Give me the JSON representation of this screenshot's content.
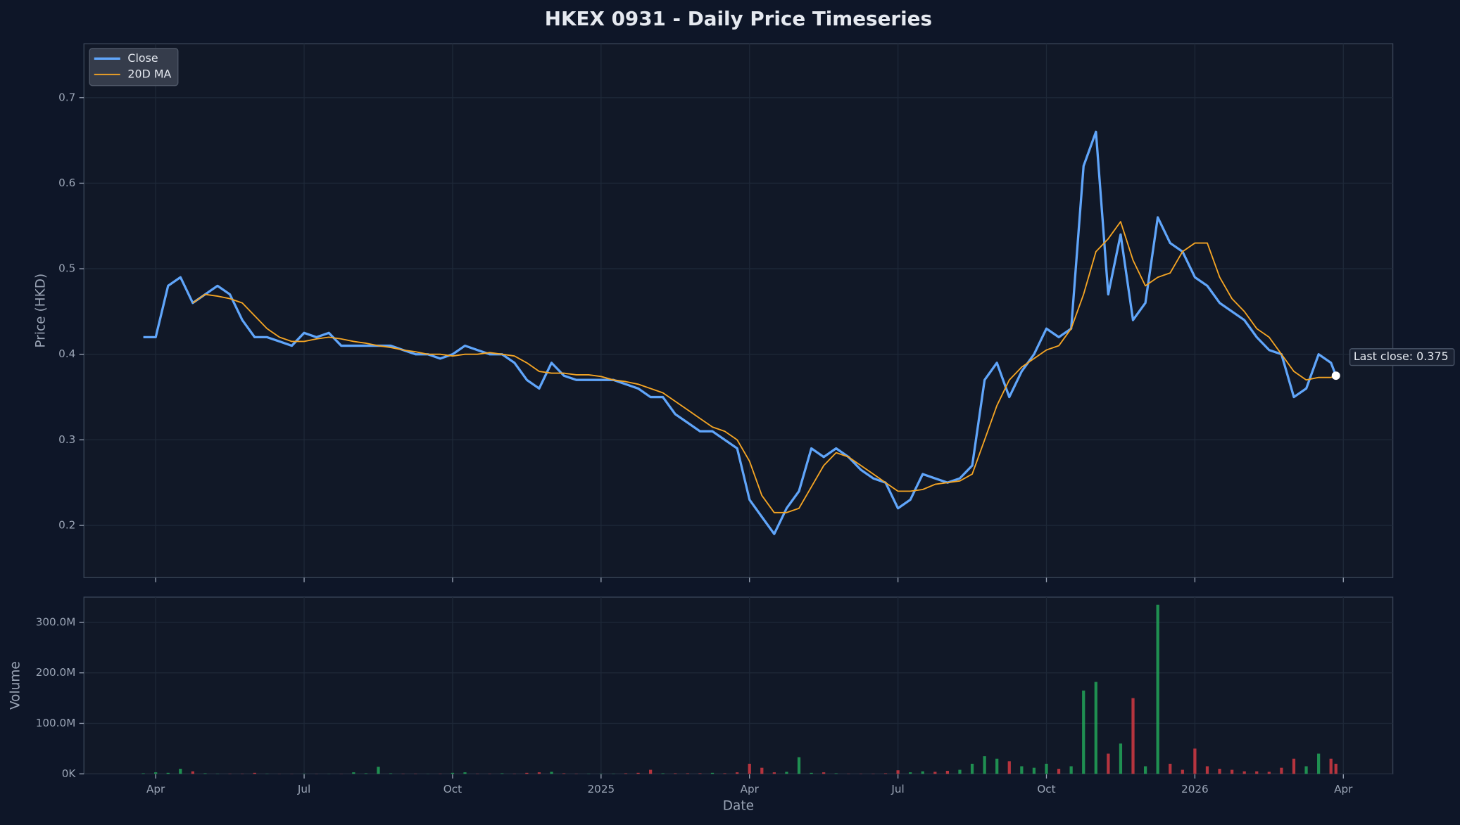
{
  "chart_data": [
    {
      "type": "line",
      "title": "HKEX 0931 - Daily Price Timeseries",
      "ylabel": "Price (HKD)",
      "x": [
        2.75,
        3,
        3.25,
        3.5,
        3.75,
        4,
        4.25,
        4.5,
        4.75,
        5,
        5.25,
        5.5,
        5.75,
        6,
        6.25,
        6.5,
        6.75,
        7,
        7.25,
        7.5,
        7.75,
        8,
        8.25,
        8.5,
        8.75,
        9,
        9.25,
        9.5,
        9.75,
        10,
        10.25,
        10.5,
        10.75,
        11,
        11.25,
        11.5,
        11.75,
        12,
        12.25,
        12.5,
        12.75,
        13,
        13.25,
        13.5,
        13.75,
        14,
        14.25,
        14.5,
        14.75,
        15,
        15.25,
        15.5,
        15.75,
        16,
        16.25,
        16.5,
        16.75,
        17,
        17.25,
        17.5,
        17.75,
        18,
        18.25,
        18.5,
        18.75,
        19,
        19.25,
        19.5,
        19.75,
        20,
        20.25,
        20.5,
        20.75,
        21,
        21.25,
        21.5,
        21.75,
        22,
        22.25,
        22.5,
        22.75,
        23,
        23.25,
        23.5,
        23.75,
        24,
        24.25,
        24.5,
        24.75,
        25,
        25.25,
        25.5,
        25.75,
        26,
        26.25,
        26.5,
        26.75,
        26.85
      ],
      "series": [
        {
          "name": "Close",
          "color": "#60a5fa",
          "values": [
            0.42,
            0.42,
            0.48,
            0.49,
            0.46,
            0.47,
            0.48,
            0.47,
            0.44,
            0.42,
            0.42,
            0.415,
            0.41,
            0.425,
            0.42,
            0.425,
            0.41,
            0.41,
            0.41,
            0.41,
            0.41,
            0.405,
            0.4,
            0.4,
            0.395,
            0.4,
            0.41,
            0.405,
            0.4,
            0.4,
            0.39,
            0.37,
            0.36,
            0.39,
            0.375,
            0.37,
            0.37,
            0.37,
            0.37,
            0.365,
            0.36,
            0.35,
            0.35,
            0.33,
            0.32,
            0.31,
            0.31,
            0.3,
            0.29,
            0.23,
            0.21,
            0.19,
            0.22,
            0.24,
            0.29,
            0.28,
            0.29,
            0.28,
            0.265,
            0.255,
            0.25,
            0.22,
            0.23,
            0.26,
            0.255,
            0.25,
            0.255,
            0.27,
            0.37,
            0.39,
            0.35,
            0.38,
            0.4,
            0.43,
            0.42,
            0.43,
            0.62,
            0.66,
            0.47,
            0.54,
            0.44,
            0.46,
            0.56,
            0.53,
            0.52,
            0.49,
            0.48,
            0.46,
            0.45,
            0.44,
            0.42,
            0.405,
            0.4,
            0.35,
            0.36,
            0.4,
            0.39,
            0.375
          ]
        },
        {
          "name": "20D MA",
          "color": "#f5a524",
          "values": [
            null,
            null,
            null,
            null,
            0.46,
            0.47,
            0.468,
            0.465,
            0.46,
            0.445,
            0.43,
            0.42,
            0.415,
            0.415,
            0.418,
            0.42,
            0.418,
            0.415,
            0.413,
            0.41,
            0.408,
            0.405,
            0.403,
            0.4,
            0.4,
            0.398,
            0.4,
            0.4,
            0.402,
            0.4,
            0.398,
            0.39,
            0.38,
            0.378,
            0.378,
            0.376,
            0.376,
            0.374,
            0.37,
            0.368,
            0.365,
            0.36,
            0.355,
            0.345,
            0.335,
            0.325,
            0.315,
            0.31,
            0.3,
            0.275,
            0.235,
            0.215,
            0.215,
            0.22,
            0.245,
            0.27,
            0.285,
            0.28,
            0.27,
            0.26,
            0.25,
            0.24,
            0.24,
            0.242,
            0.248,
            0.25,
            0.252,
            0.26,
            0.3,
            0.34,
            0.37,
            0.385,
            0.395,
            0.405,
            0.41,
            0.43,
            0.47,
            0.52,
            0.535,
            0.555,
            0.51,
            0.48,
            0.49,
            0.495,
            0.52,
            0.53,
            0.53,
            0.49,
            0.465,
            0.45,
            0.43,
            0.42,
            0.4,
            0.38,
            0.37,
            0.373,
            0.373,
            0.375
          ]
        }
      ],
      "xlim": [
        1.55,
        28.0
      ],
      "ylim": [
        0.139,
        0.763
      ],
      "yticks": [
        0.2,
        0.3,
        0.4,
        0.5,
        0.6,
        0.7
      ],
      "grid": true,
      "legend": "upper left",
      "annotation": "Last close: 0.375"
    },
    {
      "type": "bar",
      "xlabel": "Date",
      "ylabel": "Volume",
      "x": [
        2.75,
        3,
        3.25,
        3.5,
        3.75,
        4,
        4.25,
        4.5,
        4.75,
        5,
        5.25,
        5.5,
        5.75,
        6,
        6.25,
        6.5,
        6.75,
        7,
        7.25,
        7.5,
        7.75,
        8,
        8.25,
        8.5,
        8.75,
        9,
        9.25,
        9.5,
        9.75,
        10,
        10.25,
        10.5,
        10.75,
        11,
        11.25,
        11.5,
        11.75,
        12,
        12.25,
        12.5,
        12.75,
        13,
        13.25,
        13.5,
        13.75,
        14,
        14.25,
        14.5,
        14.75,
        15,
        15.25,
        15.5,
        15.75,
        16,
        16.25,
        16.5,
        16.75,
        17,
        17.25,
        17.5,
        17.75,
        18,
        18.25,
        18.5,
        18.75,
        19,
        19.25,
        19.5,
        19.75,
        20,
        20.25,
        20.5,
        20.75,
        21,
        21.25,
        21.5,
        21.75,
        22,
        22.25,
        22.5,
        22.75,
        23,
        23.25,
        23.5,
        23.75,
        24,
        24.25,
        24.5,
        24.75,
        25,
        25.25,
        25.5,
        25.75,
        26,
        26.25,
        26.5,
        26.75,
        26.85
      ],
      "values": [
        1000000,
        3000000,
        2000000,
        10000000,
        5000000,
        1000000,
        500000,
        500000,
        500000,
        2000000,
        500000,
        300000,
        300000,
        500000,
        300000,
        300000,
        300000,
        3000000,
        1000000,
        14000000,
        1000000,
        500000,
        500000,
        300000,
        500000,
        2000000,
        3000000,
        500000,
        500000,
        1000000,
        500000,
        2000000,
        3000000,
        4000000,
        1000000,
        500000,
        500000,
        500000,
        500000,
        1000000,
        2000000,
        8000000,
        1000000,
        1000000,
        1000000,
        1000000,
        2000000,
        1000000,
        3000000,
        20000000,
        12000000,
        3000000,
        4000000,
        33000000,
        2000000,
        3000000,
        1000000,
        500000,
        500000,
        500000,
        1000000,
        7000000,
        3000000,
        5000000,
        4000000,
        6000000,
        8000000,
        20000000,
        35000000,
        30000000,
        25000000,
        15000000,
        12000000,
        20000000,
        10000000,
        15000000,
        165000000,
        182000000,
        40000000,
        60000000,
        150000000,
        15000000,
        335000000,
        20000000,
        8000000,
        50000000,
        15000000,
        10000000,
        8000000,
        5000000,
        5000000,
        4000000,
        12000000,
        30000000,
        15000000,
        40000000,
        30000000,
        20000000
      ],
      "up_color": "#22a559",
      "down_color": "#d33a43",
      "xlim": [
        1.55,
        28.0
      ],
      "ylim": [
        0,
        350000000
      ],
      "yticks": [
        {
          "value": 0,
          "label": "0K"
        },
        {
          "value": 100000000,
          "label": "100.0M"
        },
        {
          "value": 200000000,
          "label": "200.0M"
        },
        {
          "value": 300000000,
          "label": "300.0M"
        }
      ],
      "xticks": [
        {
          "value": 3,
          "label": "Apr"
        },
        {
          "value": 6,
          "label": "Jul"
        },
        {
          "value": 9,
          "label": "Oct"
        },
        {
          "value": 12,
          "label": "2025"
        },
        {
          "value": 15,
          "label": "Apr"
        },
        {
          "value": 18,
          "label": "Jul"
        },
        {
          "value": 21,
          "label": "Oct"
        },
        {
          "value": 24,
          "label": "2026"
        },
        {
          "value": 27,
          "label": "Apr"
        }
      ],
      "grid": true
    }
  ]
}
